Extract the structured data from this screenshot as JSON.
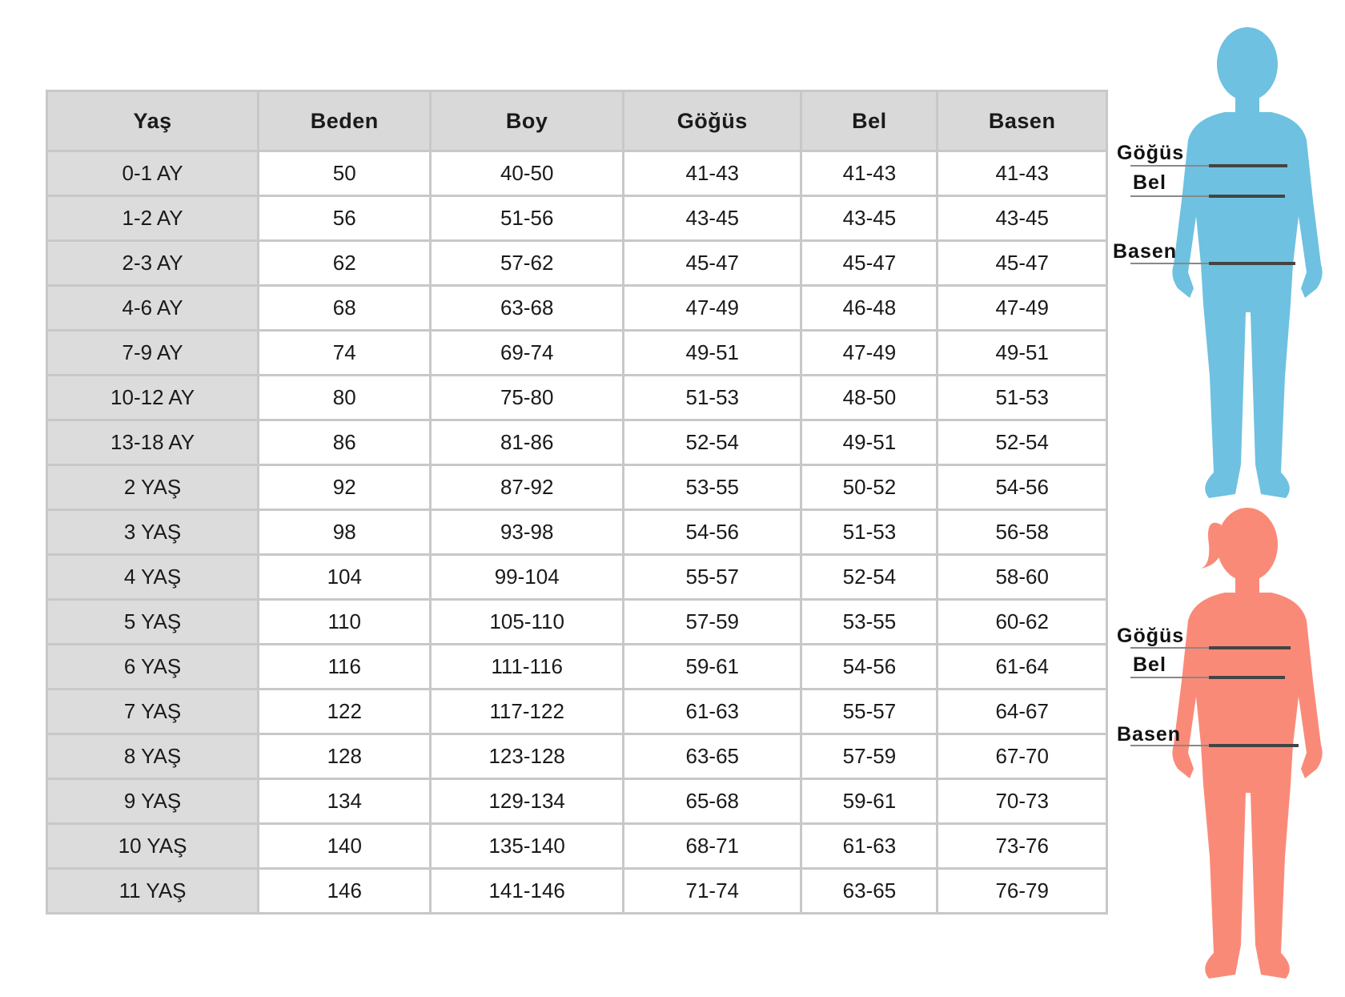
{
  "table": {
    "headers": [
      "Yaş",
      "Beden",
      "Boy",
      "Göğüs",
      "Bel",
      "Basen"
    ],
    "rows": [
      [
        "0-1 AY",
        "50",
        "40-50",
        "41-43",
        "41-43",
        "41-43"
      ],
      [
        "1-2 AY",
        "56",
        "51-56",
        "43-45",
        "43-45",
        "43-45"
      ],
      [
        "2-3 AY",
        "62",
        "57-62",
        "45-47",
        "45-47",
        "45-47"
      ],
      [
        "4-6 AY",
        "68",
        "63-68",
        "47-49",
        "46-48",
        "47-49"
      ],
      [
        "7-9 AY",
        "74",
        "69-74",
        "49-51",
        "47-49",
        "49-51"
      ],
      [
        "10-12 AY",
        "80",
        "75-80",
        "51-53",
        "48-50",
        "51-53"
      ],
      [
        "13-18 AY",
        "86",
        "81-86",
        "52-54",
        "49-51",
        "52-54"
      ],
      [
        "2 YAŞ",
        "92",
        "87-92",
        "53-55",
        "50-52",
        "54-56"
      ],
      [
        "3 YAŞ",
        "98",
        "93-98",
        "54-56",
        "51-53",
        "56-58"
      ],
      [
        "4 YAŞ",
        "104",
        "99-104",
        "55-57",
        "52-54",
        "58-60"
      ],
      [
        "5 YAŞ",
        "110",
        "105-110",
        "57-59",
        "53-55",
        "60-62"
      ],
      [
        "6 YAŞ",
        "116",
        "111-116",
        "59-61",
        "54-56",
        "61-64"
      ],
      [
        "7 YAŞ",
        "122",
        "117-122",
        "61-63",
        "55-57",
        "64-67"
      ],
      [
        "8 YAŞ",
        "128",
        "123-128",
        "63-65",
        "57-59",
        "67-70"
      ],
      [
        "9 YAŞ",
        "134",
        "129-134",
        "65-68",
        "59-61",
        "70-73"
      ],
      [
        "10 YAŞ",
        "140",
        "135-140",
        "68-71",
        "61-63",
        "73-76"
      ],
      [
        "11 YAŞ",
        "146",
        "141-146",
        "71-74",
        "63-65",
        "76-79"
      ]
    ]
  },
  "figures": {
    "boy": {
      "color": "#6ec1e0",
      "labels": {
        "chest": "Göğüs",
        "waist": "Bel",
        "hip": "Basen"
      }
    },
    "girl": {
      "color": "#fa8a78",
      "labels": {
        "chest": "Göğüs",
        "waist": "Bel",
        "hip": "Basen"
      }
    }
  }
}
